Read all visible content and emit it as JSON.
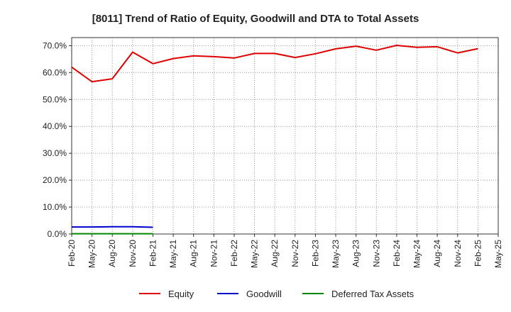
{
  "chart_data": {
    "type": "line",
    "title": "[8011]  Trend of Ratio of Equity, Goodwill and DTA to Total Assets",
    "xlabel": "",
    "ylabel": "",
    "x_ticks": [
      "Feb-20",
      "May-20",
      "Aug-20",
      "Nov-20",
      "Feb-21",
      "May-21",
      "Aug-21",
      "Nov-21",
      "Feb-22",
      "May-22",
      "Aug-22",
      "Nov-22",
      "Feb-23",
      "May-23",
      "Aug-23",
      "Nov-23",
      "Feb-24",
      "May-24",
      "Aug-24",
      "Nov-24",
      "Feb-25",
      "May-25"
    ],
    "y_ticks": [
      "0.0%",
      "10.0%",
      "20.0%",
      "30.0%",
      "40.0%",
      "50.0%",
      "60.0%",
      "70.0%"
    ],
    "y_tick_values": [
      0,
      10,
      20,
      30,
      40,
      50,
      60,
      70
    ],
    "ylim": [
      0,
      73
    ],
    "grid": true,
    "legend_position": "bottom",
    "series": [
      {
        "name": "Equity",
        "color": "#dd0000",
        "values": [
          62.0,
          56.6,
          57.7,
          67.6,
          63.3,
          65.2,
          66.2,
          65.9,
          65.4,
          67.1,
          67.1,
          65.6,
          67.0,
          68.8,
          69.8,
          68.3,
          70.1,
          69.4,
          69.6,
          67.3,
          68.9
        ]
      },
      {
        "name": "Goodwill",
        "color": "#0000cc",
        "values": [
          2.6,
          2.6,
          2.7,
          2.7,
          2.5
        ]
      },
      {
        "name": "Deferred Tax Assets",
        "color": "#008800",
        "values": [
          0.1,
          0.1,
          0.1,
          0.1,
          0.1
        ]
      }
    ]
  }
}
